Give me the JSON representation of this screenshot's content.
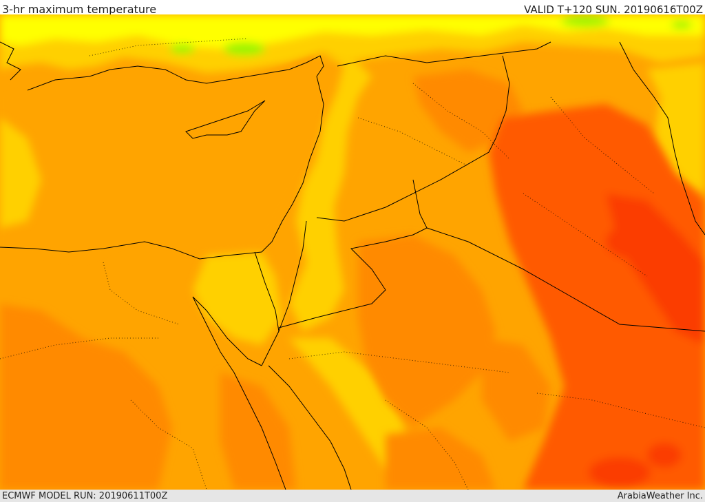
{
  "header": {
    "title": "3-hr maximum temperature",
    "valid_time": "VALID T+120 SUN. 20190616T00Z"
  },
  "footer": {
    "model_run": "ECMWF MODEL RUN: 20190611T00Z",
    "credit": "ArabiaWeather Inc."
  },
  "map": {
    "region": "Eastern Mediterranean and Middle East",
    "colors": {
      "sea_base": "#ffa400",
      "hot_orange": "#ff8a00",
      "very_hot": "#ff5a00",
      "hottest": "#fb3d00",
      "mild_yellow": "#ffd000",
      "cool_yellow": "#ffff00",
      "cooler_green": "#9cf400",
      "borders": "#000000"
    }
  }
}
